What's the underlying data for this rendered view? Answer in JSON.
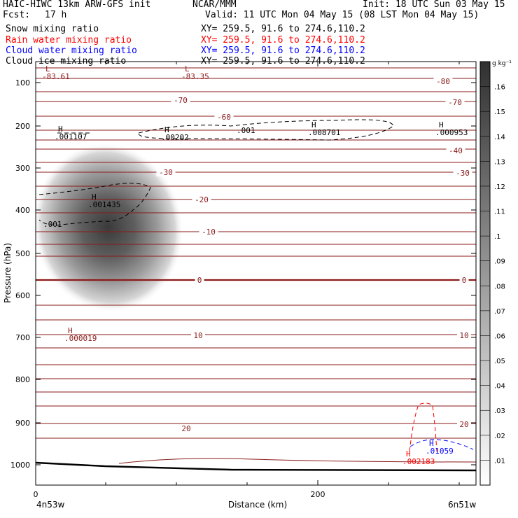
{
  "header": {
    "title_left": "HAIC-HIWC 13km ARW-GFS init",
    "org": "NCAR/MMM",
    "init": "Init: 18 UTC Sun 03 May 15",
    "fcst_label": "Fcst:",
    "fcst_value": "17 h",
    "valid": "Valid: 11 UTC Mon 04 May 15 (08 LST Mon 04 May 15)"
  },
  "fields": [
    {
      "label": "Snow mixing ratio",
      "xy": "XY= 259.5, 91.6 to 274.6,110.2",
      "color": "#000000"
    },
    {
      "label": "Rain water mixing ratio",
      "xy": "XY= 259.5, 91.6 to 274.6,110.2",
      "color": "#ff0000"
    },
    {
      "label": "Cloud water mixing ratio",
      "xy": "XY= 259.5, 91.6 to 274.6,110.2",
      "color": "#0000ff"
    },
    {
      "label": "Cloud ice mixing ratio",
      "xy": "XY= 259.5, 91.6 to 274.6,110.2",
      "color": "#000000"
    }
  ],
  "colorbar": {
    "unit": "g kg⁻¹",
    "ticks": [
      ".01",
      ".02",
      ".03",
      ".04",
      ".05",
      ".06",
      ".07",
      ".08",
      ".09",
      ".1",
      ".11",
      ".12",
      ".13",
      ".14",
      ".15",
      ".16"
    ]
  },
  "colors": {
    "isotherm": "#8b1a1a",
    "snow": "#000000",
    "rain": "#ff0000",
    "cloud_water": "#0000ff"
  },
  "chart_data": {
    "type": "heatmap",
    "title": "",
    "xlabel": "Distance (km)",
    "ylabel": "Pressure (hPa)",
    "xlim": [
      0,
      310
    ],
    "ylim": [
      1050,
      50
    ],
    "x_ticks": [
      "0",
      "200"
    ],
    "y_ticks": [
      "100",
      "200",
      "300",
      "400",
      "500",
      "600",
      "700",
      "800",
      "900",
      "1000"
    ],
    "x_ticks_values": [
      0,
      200
    ],
    "y_ticks_values": [
      100,
      200,
      300,
      400,
      500,
      600,
      700,
      800,
      900,
      1000
    ],
    "endpoint_left": "4n53w",
    "endpoint_right": "6n51w",
    "isotherms": [
      {
        "value": -80,
        "label": "-80"
      },
      {
        "value": -70,
        "label": "-70"
      },
      {
        "value": -60,
        "label": "-60"
      },
      {
        "value": -40,
        "label": "-40"
      },
      {
        "value": -30,
        "label": "-30"
      },
      {
        "value": -20,
        "label": "-20"
      },
      {
        "value": -10,
        "label": "-10"
      },
      {
        "value": 0,
        "label": "0"
      },
      {
        "value": 10,
        "label": "10"
      },
      {
        "value": 20,
        "label": "20"
      }
    ],
    "snow_max": {
      "x": 48,
      "p": 475,
      "value": 0.17
    },
    "hl_labels": [
      {
        "type": "L",
        "value": "-83.61",
        "color": "isotherm",
        "x": 8,
        "p": 85
      },
      {
        "type": "L",
        "value": "-83.35",
        "color": "isotherm",
        "x": 108,
        "p": 85
      },
      {
        "type": "H",
        "value": ".001107",
        "color": "snow",
        "x": 16,
        "p": 215
      },
      {
        "type": "H",
        "value": ".00202",
        "color": "snow",
        "x": 92,
        "p": 215
      },
      {
        "type": "H",
        "value": ".008701",
        "color": "snow",
        "x": 195,
        "p": 198
      },
      {
        "type": "H",
        "value": ".000953",
        "color": "snow",
        "x": 287,
        "p": 200
      },
      {
        "type": "H",
        "value": ".001435",
        "color": "snow",
        "x": 40,
        "p": 370
      },
      {
        "type": "H",
        "value": ".000019",
        "color": "isotherm",
        "x": 22,
        "p": 690
      },
      {
        "type": "H",
        "value": ".002183",
        "color": "rain",
        "x": 260,
        "p": 975
      },
      {
        "type": "H",
        "value": ".01059",
        "color": "cloud_water",
        "x": 280,
        "p": 958
      }
    ],
    "contour_labels": [
      {
        "text": ".001",
        "color": "snow",
        "x": 148,
        "p": 210
      },
      {
        "text": ".001",
        "color": "snow",
        "x": 6,
        "p": 430
      }
    ]
  }
}
